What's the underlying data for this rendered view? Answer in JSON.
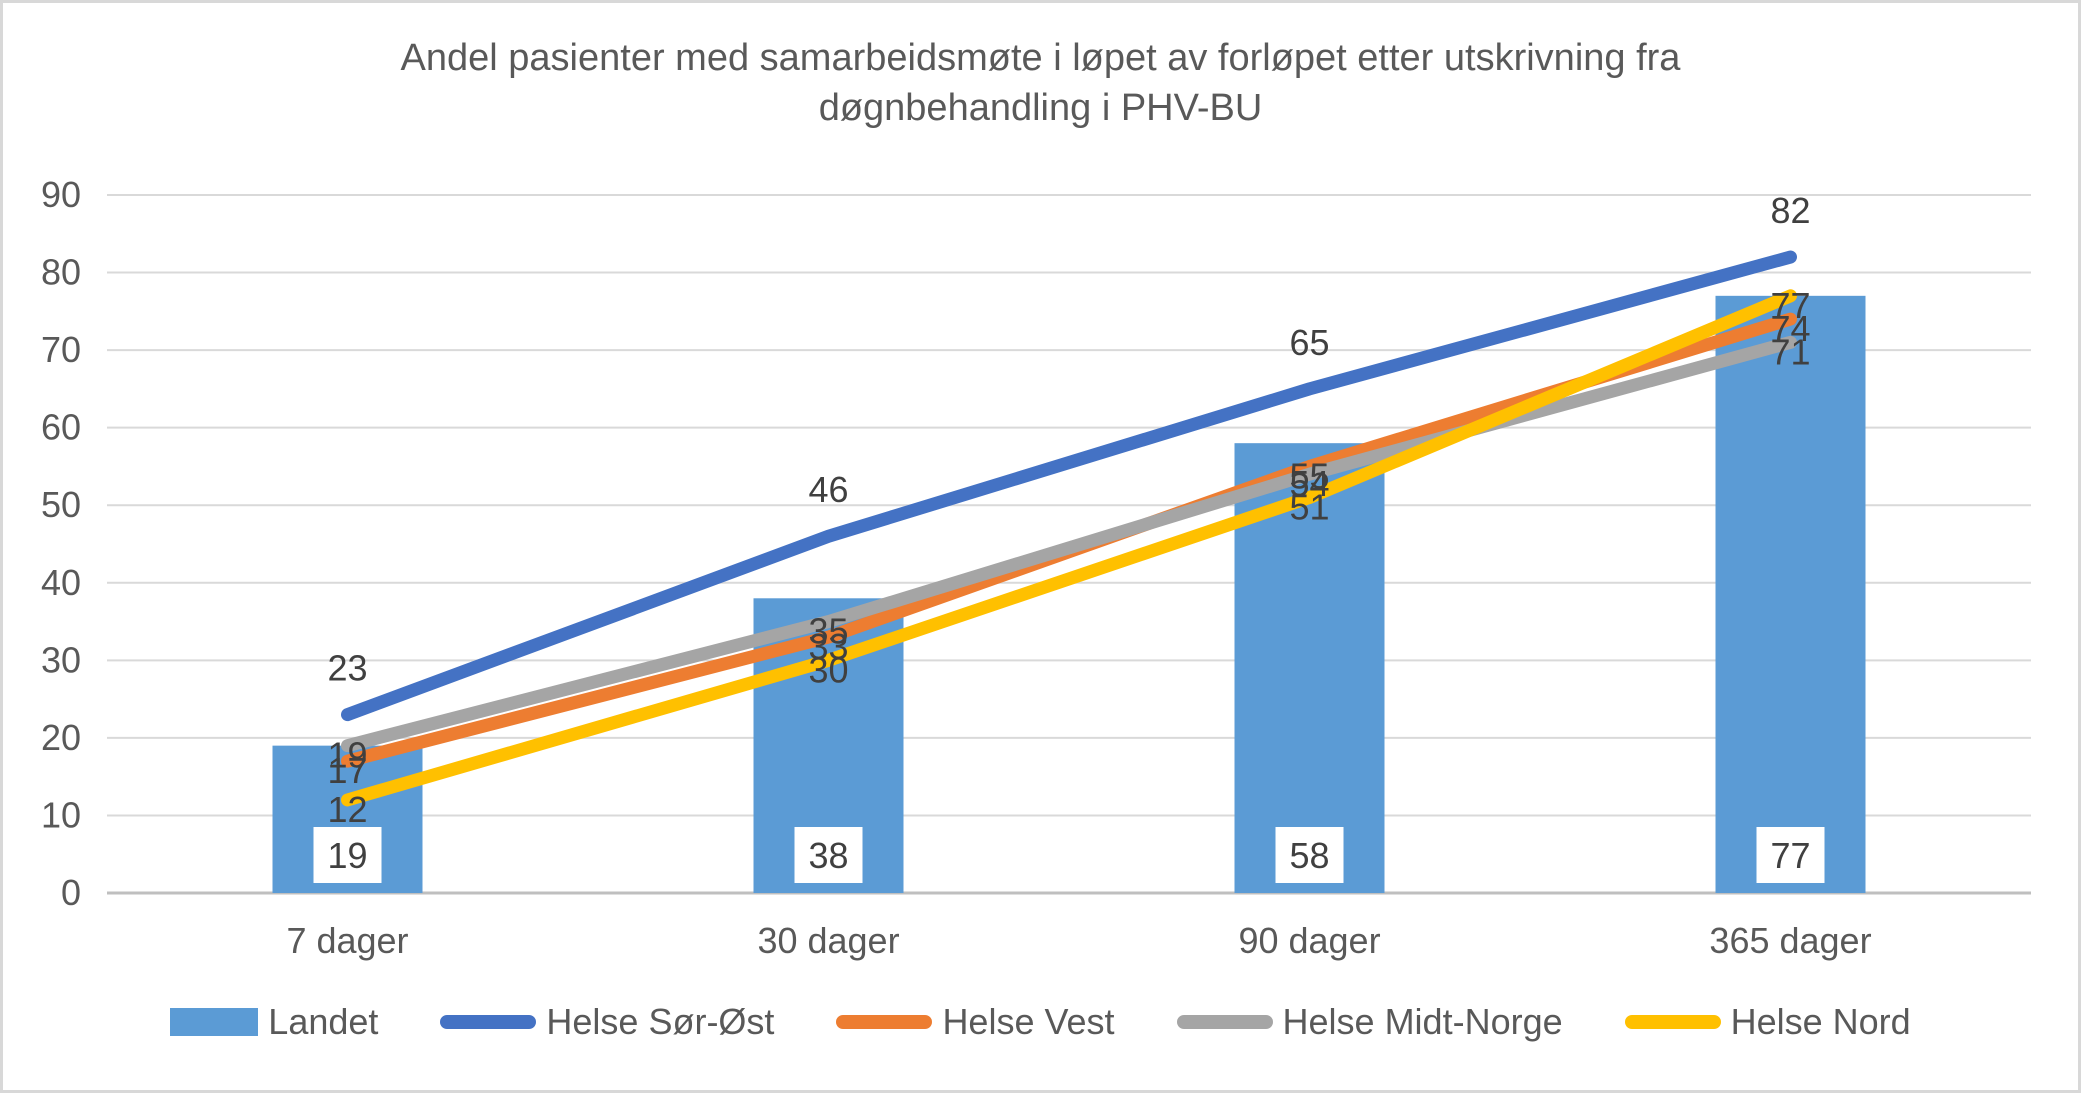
{
  "chart_data": {
    "type": "combo-bar-line",
    "title": "Andel pasienter med samarbeidsmøte i løpet av forløpet etter utskrivning fra døgnbehandling i PHV-BU",
    "title_lines": [
      "Andel pasienter med samarbeidsmøte i løpet av forløpet etter utskrivning fra",
      "døgnbehandling i PHV-BU"
    ],
    "categories": [
      "7 dager",
      "30 dager",
      "90 dager",
      "365 dager"
    ],
    "y_axis": {
      "min": 0,
      "max": 90,
      "step": 10,
      "tick_labels": [
        "0",
        "10",
        "20",
        "30",
        "40",
        "50",
        "60",
        "70",
        "80",
        "90"
      ]
    },
    "series": [
      {
        "name": "Landet",
        "type": "bar",
        "color": "#5B9BD5",
        "values": [
          19,
          38,
          58,
          77
        ],
        "label_style": "boxed"
      },
      {
        "name": "Helse Sør-Øst",
        "type": "line",
        "color": "#4472C4",
        "values": [
          23,
          46,
          65,
          82
        ],
        "label_placement": "above"
      },
      {
        "name": "Helse Vest",
        "type": "line",
        "color": "#ED7D31",
        "values": [
          17,
          33,
          55,
          74
        ],
        "label_placement": "center"
      },
      {
        "name": "Helse Midt-Norge",
        "type": "line",
        "color": "#A5A5A5",
        "values": [
          19,
          35,
          54,
          71
        ],
        "label_placement": "center"
      },
      {
        "name": "Helse Nord",
        "type": "line",
        "color": "#FFC000",
        "values": [
          12,
          30,
          51,
          77
        ],
        "label_placement": "center"
      }
    ],
    "legend": {
      "position": "bottom",
      "entries": [
        "Landet",
        "Helse Sør-Øst",
        "Helse Vest",
        "Helse Midt-Norge",
        "Helse Nord"
      ]
    },
    "grid": true,
    "colors": {
      "gridline": "#D9D9D9",
      "axis_line": "#BFBFBF",
      "tick_text": "#595959",
      "data_label_text": "#404040",
      "title_text": "#595959",
      "frame_border": "#D8D8D8"
    }
  }
}
